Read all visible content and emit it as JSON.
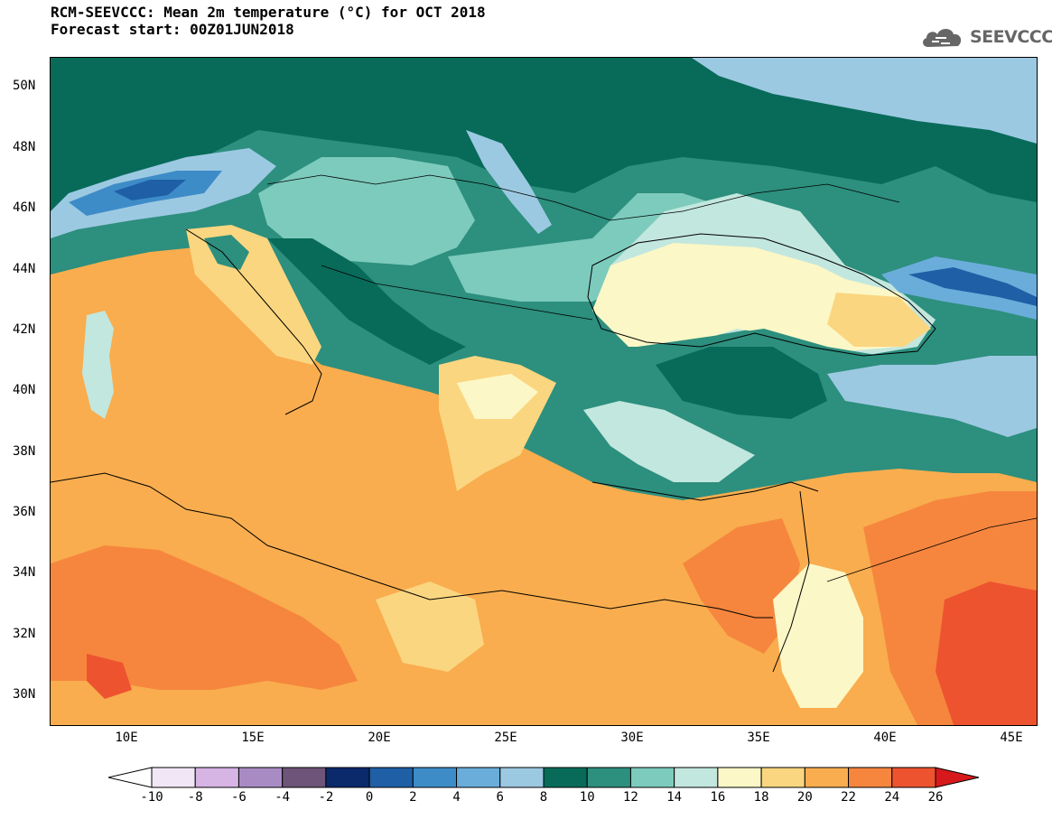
{
  "title": {
    "line1": "RCM-SEEVCCC: Mean 2m temperature (°C) for OCT 2018",
    "line2": "Forecast start: 00Z01JUN2018"
  },
  "logo": {
    "text": "SEEVCCC",
    "icon": "cloud-icon"
  },
  "map": {
    "lat_labels": [
      "50N",
      "48N",
      "46N",
      "44N",
      "42N",
      "40N",
      "38N",
      "36N",
      "34N",
      "32N",
      "30N"
    ],
    "lon_labels": [
      "10E",
      "15E",
      "20E",
      "25E",
      "30E",
      "35E",
      "40E",
      "45E"
    ],
    "extent": {
      "lon_min": 7,
      "lon_max": 46,
      "lat_min": 29,
      "lat_max": 51
    }
  },
  "colorbar": {
    "labels": [
      "-10",
      "-8",
      "-6",
      "-4",
      "-2",
      "0",
      "2",
      "4",
      "6",
      "8",
      "10",
      "12",
      "14",
      "16",
      "18",
      "20",
      "22",
      "24",
      "26"
    ],
    "colors": [
      "#f1e6f5",
      "#d6b4e4",
      "#a98bc3",
      "#6d5478",
      "#0b2a6b",
      "#1f5fa6",
      "#3d8cc8",
      "#6aadda",
      "#9cc9e2",
      "#086b5a",
      "#2d8f7e",
      "#7dcbbd",
      "#c2e7de",
      "#fcf7c6",
      "#fbd680",
      "#f9ad4e",
      "#f6863e",
      "#ee5330"
    ],
    "under_color": "#ffffff",
    "over_color": "#d7191c"
  }
}
